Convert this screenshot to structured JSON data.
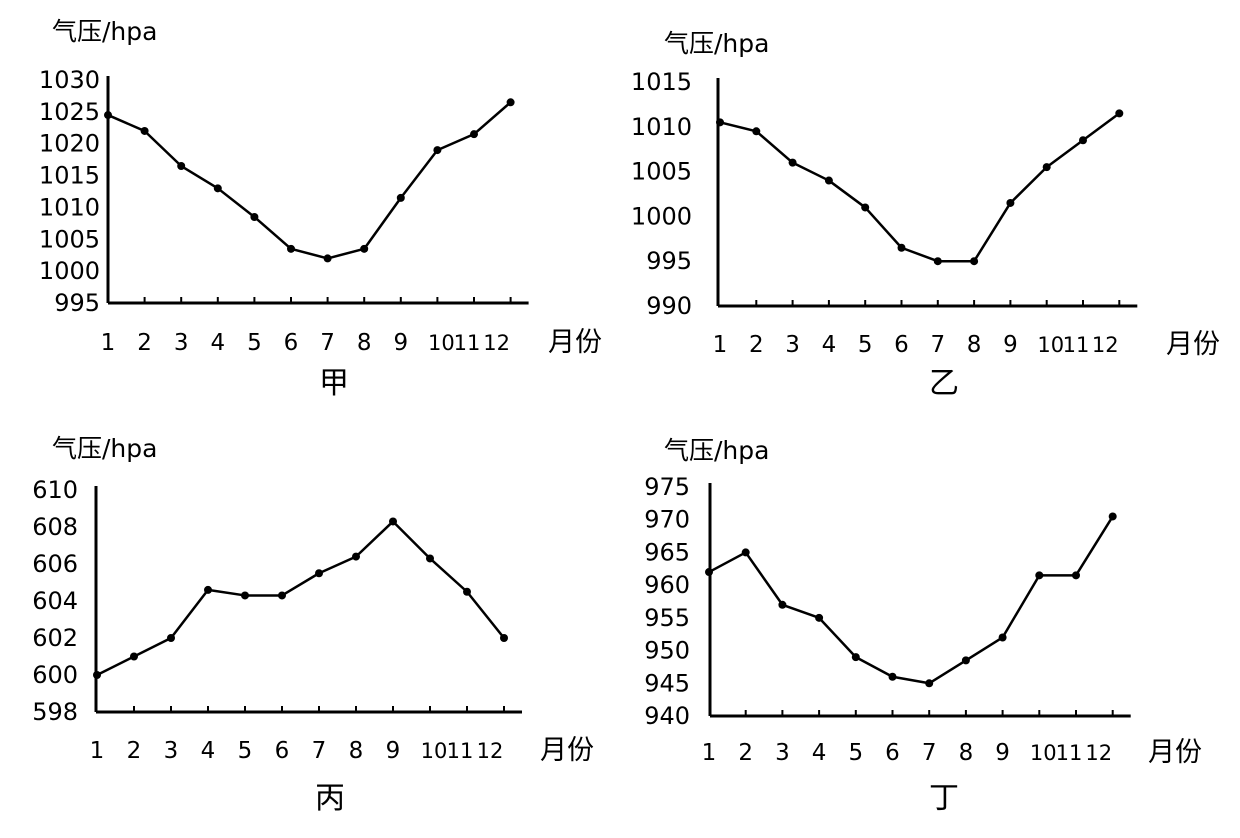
{
  "chart_data": [
    {
      "type": "line",
      "title": "甲",
      "ylabel": "气压/hpa",
      "xlabel": "月份",
      "categories": [
        "1",
        "2",
        "3",
        "4",
        "5",
        "6",
        "7",
        "8",
        "9",
        "10",
        "11",
        "12"
      ],
      "x_tick_labels": [
        "1",
        "2",
        "3",
        "4",
        "5",
        "6",
        "7",
        "8",
        "9",
        "10",
        "11",
        "12"
      ],
      "y_tick_labels": [
        "1030",
        "1025",
        "1020",
        "1015",
        "1010",
        "1005",
        "1000",
        "995"
      ],
      "ylim": [
        995,
        1030
      ],
      "series": [
        {
          "values": [
            1024.5,
            1022,
            1016.5,
            1013,
            1008.5,
            1003.5,
            1002,
            1003.5,
            1011.5,
            1019,
            1021.5,
            1026.5
          ]
        }
      ],
      "grid": false
    },
    {
      "type": "line",
      "title": "乙",
      "ylabel": "气压/hpa",
      "xlabel": "月份",
      "categories": [
        "1",
        "2",
        "3",
        "4",
        "5",
        "6",
        "7",
        "8",
        "9",
        "10",
        "11",
        "12"
      ],
      "x_tick_labels": [
        "1",
        "2",
        "3",
        "4",
        "5",
        "6",
        "7",
        "8",
        "9",
        "10",
        "11",
        "12"
      ],
      "y_tick_labels": [
        "1015",
        "1010",
        "1005",
        "1000",
        "995",
        "990"
      ],
      "ylim": [
        990,
        1015
      ],
      "series": [
        {
          "values": [
            1010.5,
            1009.5,
            1006,
            1004,
            1001,
            996.5,
            995,
            995,
            1001.5,
            1005.5,
            1008.5,
            1011.5
          ]
        }
      ],
      "grid": false
    },
    {
      "type": "line",
      "title": "丙",
      "ylabel": "气压/hpa",
      "xlabel": "月份",
      "categories": [
        "1",
        "2",
        "3",
        "4",
        "5",
        "6",
        "7",
        "8",
        "9",
        "10",
        "11",
        "12"
      ],
      "x_tick_labels": [
        "1",
        "2",
        "3",
        "4",
        "5",
        "6",
        "7",
        "8",
        "9",
        "10",
        "11",
        "12"
      ],
      "y_tick_labels": [
        "610",
        "608",
        "606",
        "604",
        "602",
        "600",
        "598"
      ],
      "ylim": [
        598,
        610
      ],
      "series": [
        {
          "values": [
            600,
            601,
            602,
            604.6,
            604.3,
            604.3,
            605.5,
            606.4,
            608.3,
            606.3,
            604.5,
            602
          ]
        }
      ],
      "grid": false
    },
    {
      "type": "line",
      "title": "丁",
      "ylabel": "气压/hpa",
      "xlabel": "月份",
      "categories": [
        "1",
        "2",
        "3",
        "4",
        "5",
        "6",
        "7",
        "8",
        "9",
        "10",
        "11",
        "12"
      ],
      "x_tick_labels": [
        "1",
        "2",
        "3",
        "4",
        "5",
        "6",
        "7",
        "8",
        "9",
        "10",
        "11",
        "12"
      ],
      "y_tick_labels": [
        "975",
        "970",
        "965",
        "960",
        "955",
        "950",
        "945",
        "940"
      ],
      "ylim": [
        940,
        975
      ],
      "series": [
        {
          "values": [
            962,
            965,
            957,
            955,
            949,
            946,
            945,
            948.5,
            952,
            961.5,
            961.5,
            970.5
          ]
        }
      ],
      "grid": false
    }
  ]
}
